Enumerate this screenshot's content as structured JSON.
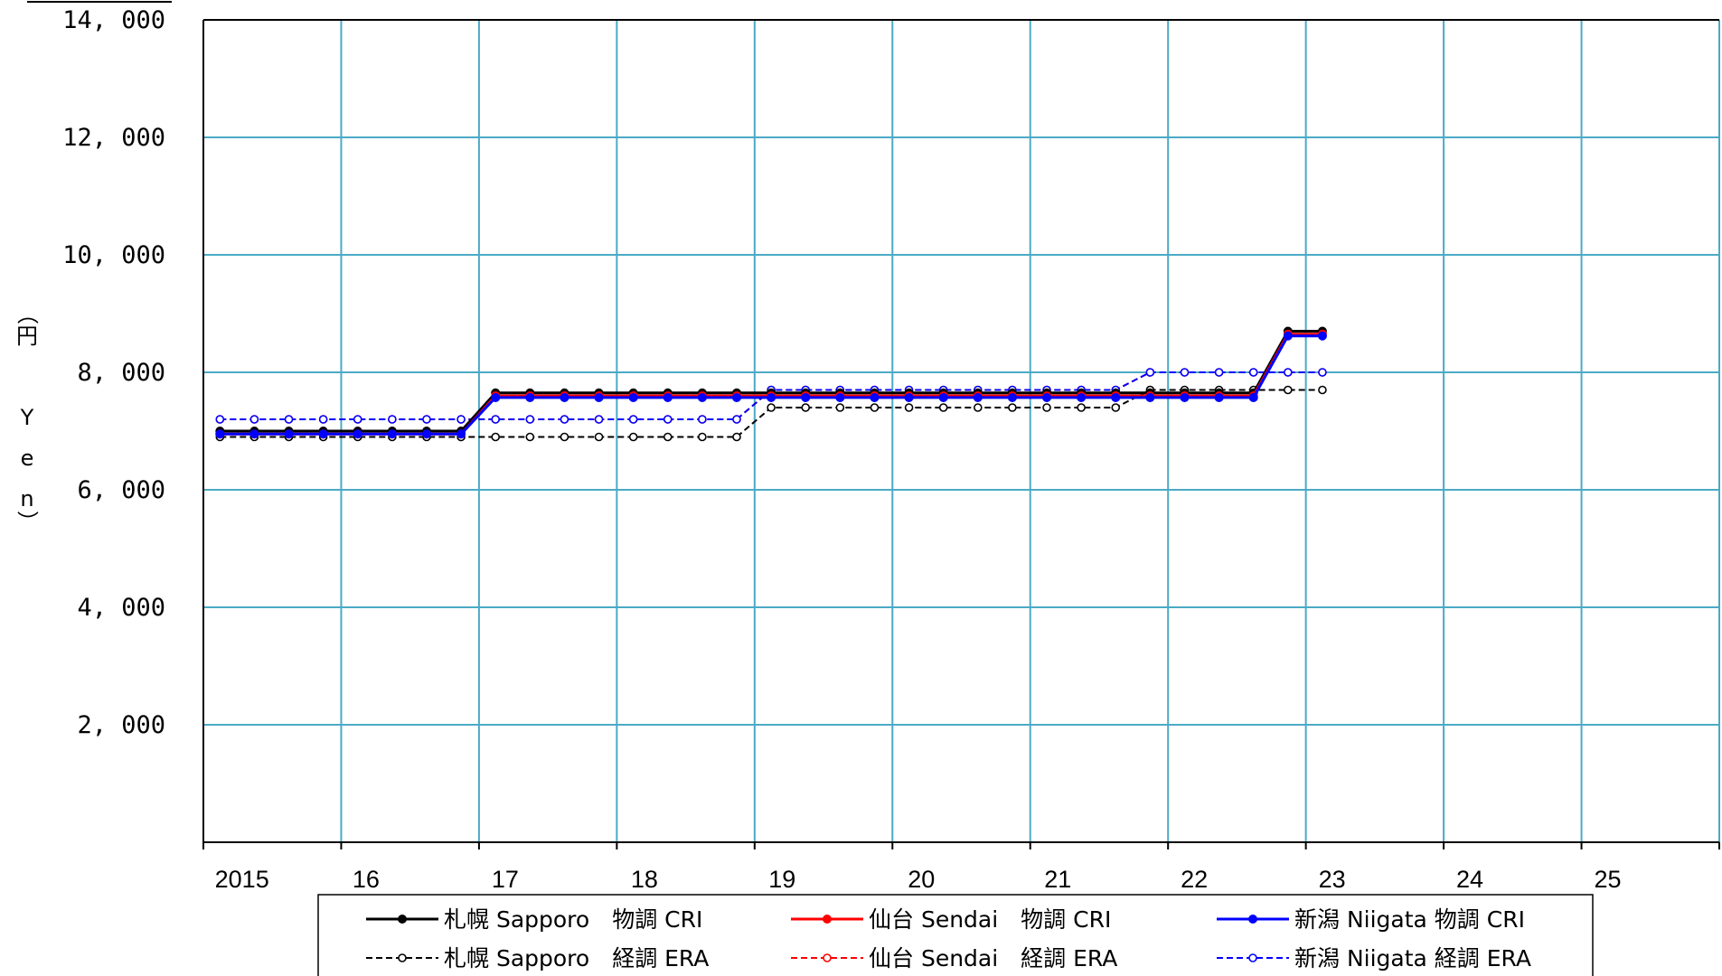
{
  "chart_data": {
    "type": "line",
    "title": "",
    "ylabel": "（円　Yen）",
    "ylabel_chars": [
      "（",
      "円",
      "",
      "Y",
      "e",
      "n",
      "）"
    ],
    "ylim": [
      0,
      14000
    ],
    "yticks": [
      {
        "value": 2000,
        "label": "2, 000"
      },
      {
        "value": 4000,
        "label": "4, 000"
      },
      {
        "value": 6000,
        "label": "6, 000"
      },
      {
        "value": 8000,
        "label": "8, 000"
      },
      {
        "value": 10000,
        "label": "10, 000"
      },
      {
        "value": 12000,
        "label": "12, 000"
      },
      {
        "value": 14000,
        "label": "14, 000"
      }
    ],
    "xlim": [
      2015,
      2026
    ],
    "xticks": [
      {
        "value": 2015.28,
        "label": "2015"
      },
      {
        "value": 2016.18,
        "label": "16"
      },
      {
        "value": 2017.19,
        "label": "17"
      },
      {
        "value": 2018.2,
        "label": "18"
      },
      {
        "value": 2019.2,
        "label": "19"
      },
      {
        "value": 2020.21,
        "label": "20"
      },
      {
        "value": 2021.2,
        "label": "21"
      },
      {
        "value": 2022.19,
        "label": "22"
      },
      {
        "value": 2023.19,
        "label": "23"
      },
      {
        "value": 2024.19,
        "label": "24"
      },
      {
        "value": 2025.19,
        "label": "25"
      }
    ],
    "grid": true,
    "legend_position": "bottom",
    "series": [
      {
        "name": "札幌 Sapporo　物調 CRI",
        "color": "#000000",
        "dashed": false,
        "marker": "filled",
        "x": [
          2015.12,
          2015.37,
          2015.62,
          2015.87,
          2016.12,
          2016.37,
          2016.62,
          2016.87,
          2017.12,
          2017.37,
          2017.62,
          2017.87,
          2018.12,
          2018.37,
          2018.62,
          2018.87,
          2019.12,
          2019.37,
          2019.62,
          2019.87,
          2020.12,
          2020.37,
          2020.62,
          2020.87,
          2021.12,
          2021.37,
          2021.62,
          2021.87,
          2022.12,
          2022.37,
          2022.62,
          2022.87,
          2023.12
        ],
        "y": [
          7000,
          7000,
          7000,
          7000,
          7000,
          7000,
          7000,
          7000,
          7650,
          7650,
          7650,
          7650,
          7650,
          7650,
          7650,
          7650,
          7650,
          7650,
          7650,
          7650,
          7650,
          7650,
          7650,
          7650,
          7650,
          7650,
          7650,
          7650,
          7650,
          7650,
          7650,
          8700,
          8700
        ]
      },
      {
        "name": "仙台 Sendai　物調 CRI",
        "color": "#ff0000",
        "dashed": false,
        "marker": "filled",
        "x": [
          2015.12,
          2015.37,
          2015.62,
          2015.87,
          2016.12,
          2016.37,
          2016.62,
          2016.87,
          2017.12,
          2017.37,
          2017.62,
          2017.87,
          2018.12,
          2018.37,
          2018.62,
          2018.87,
          2019.12,
          2019.37,
          2019.62,
          2019.87,
          2020.12,
          2020.37,
          2020.62,
          2020.87,
          2021.12,
          2021.37,
          2021.62,
          2021.87,
          2022.12,
          2022.37,
          2022.62,
          2022.87,
          2023.12
        ],
        "y": [
          6950,
          6950,
          6950,
          6950,
          6950,
          6950,
          6950,
          6950,
          7600,
          7600,
          7600,
          7600,
          7600,
          7600,
          7600,
          7600,
          7600,
          7600,
          7600,
          7600,
          7600,
          7600,
          7600,
          7600,
          7600,
          7600,
          7600,
          7600,
          7600,
          7600,
          7600,
          8650,
          8650
        ]
      },
      {
        "name": "新潟 Niigata 物調 CRI",
        "color": "#0000ff",
        "dashed": false,
        "marker": "filled",
        "x": [
          2015.12,
          2015.37,
          2015.62,
          2015.87,
          2016.12,
          2016.37,
          2016.62,
          2016.87,
          2017.12,
          2017.37,
          2017.62,
          2017.87,
          2018.12,
          2018.37,
          2018.62,
          2018.87,
          2019.12,
          2019.37,
          2019.62,
          2019.87,
          2020.12,
          2020.37,
          2020.62,
          2020.87,
          2021.12,
          2021.37,
          2021.62,
          2021.87,
          2022.12,
          2022.37,
          2022.62,
          2022.87,
          2023.12
        ],
        "y": [
          6950,
          6950,
          6950,
          6950,
          6950,
          6950,
          6950,
          6950,
          7570,
          7570,
          7570,
          7570,
          7570,
          7570,
          7570,
          7570,
          7570,
          7570,
          7570,
          7570,
          7570,
          7570,
          7570,
          7570,
          7570,
          7570,
          7570,
          7570,
          7570,
          7570,
          7570,
          8620,
          8620
        ]
      },
      {
        "name": "札幌 Sapporo　経調 ERA",
        "color": "#000000",
        "dashed": true,
        "marker": "hollow",
        "x": [
          2015.12,
          2015.37,
          2015.62,
          2015.87,
          2016.12,
          2016.37,
          2016.62,
          2016.87,
          2017.12,
          2017.37,
          2017.62,
          2017.87,
          2018.12,
          2018.37,
          2018.62,
          2018.87,
          2019.12,
          2019.37,
          2019.62,
          2019.87,
          2020.12,
          2020.37,
          2020.62,
          2020.87,
          2021.12,
          2021.37,
          2021.62,
          2021.87,
          2022.12,
          2022.37,
          2022.62,
          2022.87,
          2023.12
        ],
        "y": [
          6900,
          6900,
          6900,
          6900,
          6900,
          6900,
          6900,
          6900,
          6900,
          6900,
          6900,
          6900,
          6900,
          6900,
          6900,
          6900,
          7400,
          7400,
          7400,
          7400,
          7400,
          7400,
          7400,
          7400,
          7400,
          7400,
          7400,
          7700,
          7700,
          7700,
          7700,
          7700,
          7700
        ]
      },
      {
        "name": "仙台 Sendai　経調 ERA",
        "color": "#ff0000",
        "dashed": true,
        "marker": "hollow",
        "x": [
          2015.12,
          2015.37,
          2015.62,
          2015.87,
          2016.12,
          2016.37,
          2016.62,
          2016.87,
          2017.12,
          2017.37,
          2017.62,
          2017.87,
          2018.12,
          2018.37,
          2018.62,
          2018.87,
          2019.12,
          2019.37,
          2019.62,
          2019.87,
          2020.12,
          2020.37,
          2020.62,
          2020.87,
          2021.12,
          2021.37,
          2021.62,
          2021.87,
          2022.12,
          2022.37,
          2022.62,
          2022.87,
          2023.12
        ],
        "y": [
          7200,
          7200,
          7200,
          7200,
          7200,
          7200,
          7200,
          7200,
          7200,
          7200,
          7200,
          7200,
          7200,
          7200,
          7200,
          7200,
          7700,
          7700,
          7700,
          7700,
          7700,
          7700,
          7700,
          7700,
          7700,
          7700,
          7700,
          8000,
          8000,
          8000,
          8000,
          8000,
          8000
        ]
      },
      {
        "name": "新潟 Niigata 経調 ERA",
        "color": "#0000ff",
        "dashed": true,
        "marker": "hollow",
        "x": [
          2015.12,
          2015.37,
          2015.62,
          2015.87,
          2016.12,
          2016.37,
          2016.62,
          2016.87,
          2017.12,
          2017.37,
          2017.62,
          2017.87,
          2018.12,
          2018.37,
          2018.62,
          2018.87,
          2019.12,
          2019.37,
          2019.62,
          2019.87,
          2020.12,
          2020.37,
          2020.62,
          2020.87,
          2021.12,
          2021.37,
          2021.62,
          2021.87,
          2022.12,
          2022.37,
          2022.62,
          2022.87,
          2023.12
        ],
        "y": [
          7200,
          7200,
          7200,
          7200,
          7200,
          7200,
          7200,
          7200,
          7200,
          7200,
          7200,
          7200,
          7200,
          7200,
          7200,
          7200,
          7700,
          7700,
          7700,
          7700,
          7700,
          7700,
          7700,
          7700,
          7700,
          7700,
          7700,
          8000,
          8000,
          8000,
          8000,
          8000,
          8000
        ]
      }
    ]
  },
  "colors": {
    "grid": "#4baac6",
    "axis": "#000000"
  }
}
